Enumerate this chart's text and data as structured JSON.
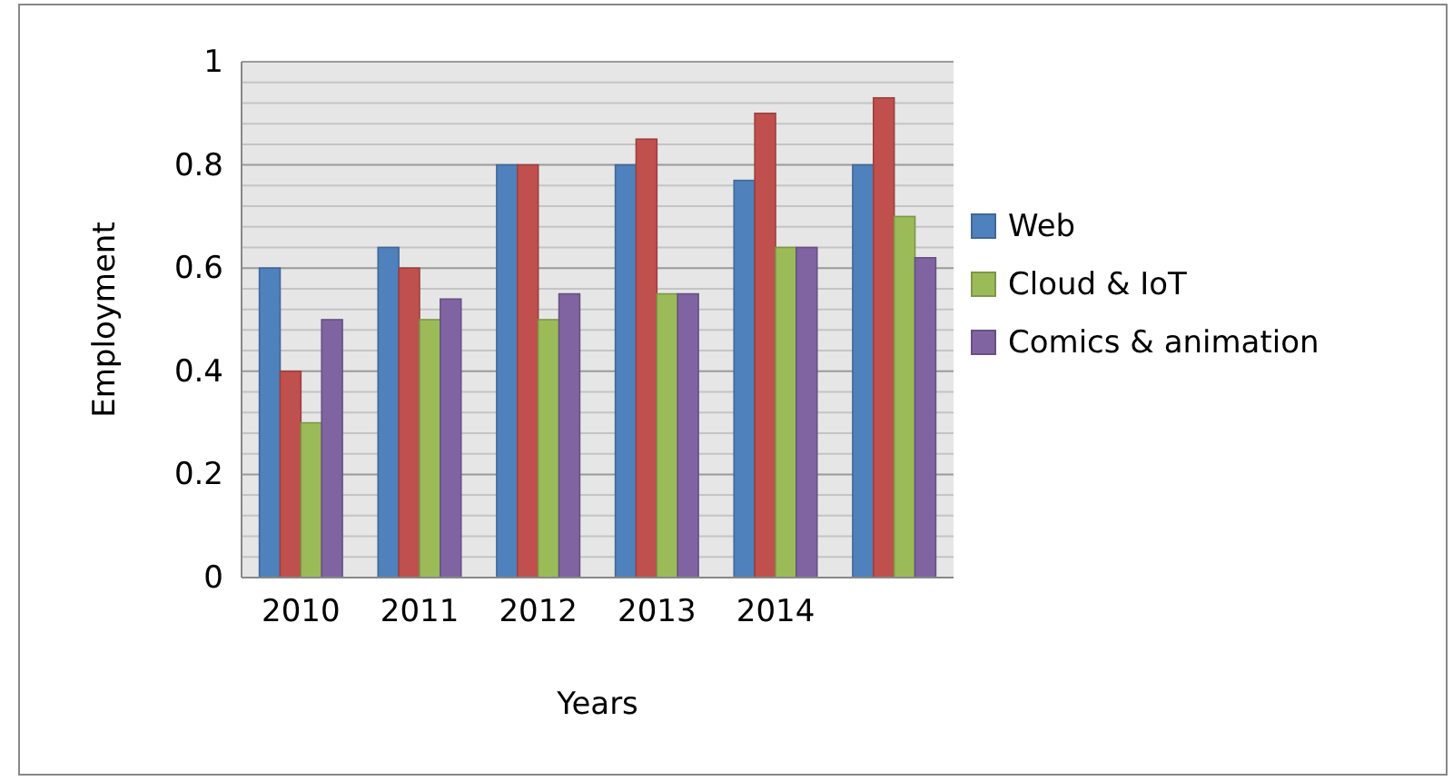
{
  "chart_data": {
    "type": "bar",
    "xlabel": "Years",
    "ylabel": "Employment",
    "categories": [
      "2010",
      "2011",
      "2012",
      "2013",
      "2014",
      null
    ],
    "series": [
      {
        "name": "Web",
        "color": "#4f81bd",
        "values": [
          0.6,
          0.64,
          0.8,
          0.8,
          0.77,
          0.8
        ]
      },
      {
        "color": "#c0504d",
        "values": [
          0.4,
          0.6,
          0.8,
          0.85,
          0.9,
          0.93
        ]
      },
      {
        "name": "Cloud & IoT",
        "color": "#9bbb59",
        "values": [
          0.3,
          0.5,
          0.5,
          0.55,
          0.64,
          0.7
        ]
      },
      {
        "name": "Comics & animation",
        "color": "#8064a2",
        "values": [
          0.5,
          0.54,
          0.55,
          0.55,
          0.64,
          0.62
        ]
      }
    ],
    "ylim": [
      0,
      1
    ],
    "yticks": [
      0,
      {
        "value": 0.04,
        "label": null
      },
      {
        "value": 0.08,
        "label": null
      },
      {
        "value": 0.12,
        "label": null
      },
      {
        "value": 0.16,
        "label": null
      },
      0.2,
      {
        "value": 0.24,
        "label": null
      },
      {
        "value": 0.28,
        "label": null
      },
      {
        "value": 0.32,
        "label": null
      },
      {
        "value": 0.36,
        "label": null
      },
      0.4,
      {
        "value": 0.44,
        "label": null
      },
      {
        "value": 0.48,
        "label": null
      },
      {
        "value": 0.52,
        "label": null
      },
      {
        "value": 0.56,
        "label": null
      },
      0.6,
      {
        "value": 0.64,
        "label": null
      },
      {
        "value": 0.68,
        "label": null
      },
      {
        "value": 0.72,
        "label": null
      },
      {
        "value": 0.76,
        "label": null
      },
      0.8,
      {
        "value": 0.84,
        "label": null
      },
      {
        "value": 0.88,
        "label": null
      },
      {
        "value": 0.92,
        "label": null
      },
      {
        "value": 0.96,
        "label": null
      },
      1
    ],
    "grid": "y",
    "legend": "right"
  }
}
